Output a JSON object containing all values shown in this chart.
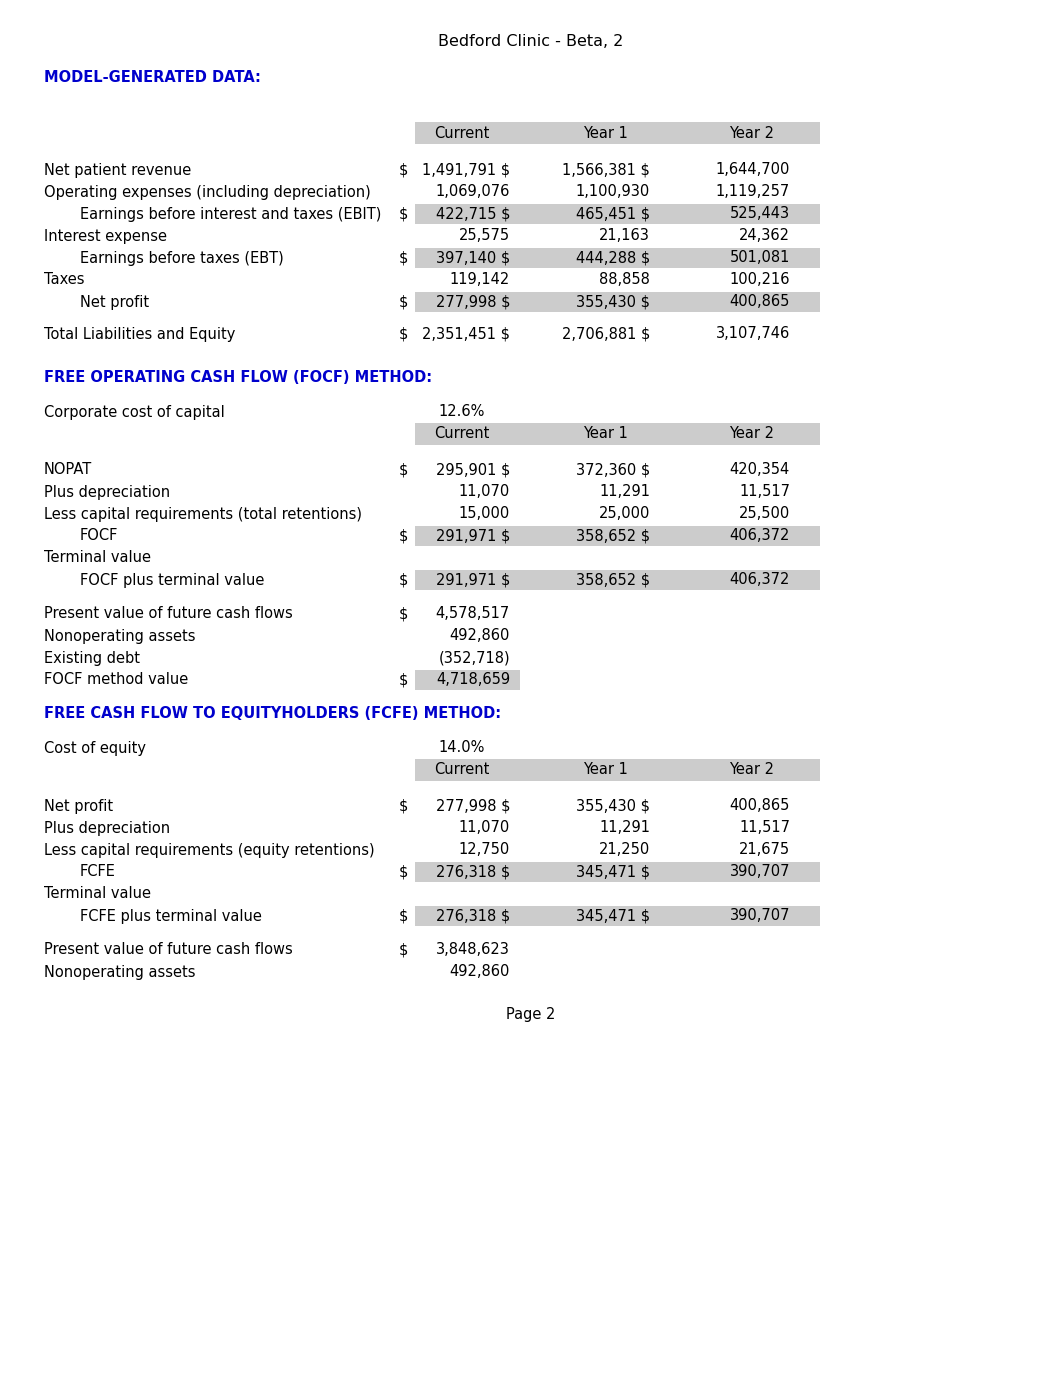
{
  "title": "Bedford Clinic - Beta, 2",
  "page_label": "Page 2",
  "bg_color": "#ffffff",
  "blue_color": "#0000cc",
  "black_color": "#000000",
  "gray_bg": "#CCCCCC",
  "font_size": 10.5,
  "title_font_size": 11,
  "section1_header": "MODEL-GENERATED DATA:",
  "section1_col_headers": [
    "Current",
    "Year 1",
    "Year 2"
  ],
  "section1_rows": [
    {
      "label": "Net patient revenue",
      "indent": false,
      "dollar": true,
      "shaded": false,
      "values": [
        "1,491,791 $",
        "1,566,381 $",
        "1,644,700"
      ]
    },
    {
      "label": "Operating expenses (including depreciation)",
      "indent": false,
      "dollar": false,
      "shaded": false,
      "values": [
        "1,069,076",
        "1,100,930",
        "1,119,257"
      ]
    },
    {
      "label": "Earnings before interest and taxes (EBIT)",
      "indent": true,
      "dollar": true,
      "shaded": true,
      "values": [
        "422,715 $",
        "465,451 $",
        "525,443"
      ]
    },
    {
      "label": "Interest expense",
      "indent": false,
      "dollar": false,
      "shaded": false,
      "values": [
        "25,575",
        "21,163",
        "24,362"
      ]
    },
    {
      "label": "Earnings before taxes (EBT)",
      "indent": true,
      "dollar": true,
      "shaded": true,
      "values": [
        "397,140 $",
        "444,288 $",
        "501,081"
      ]
    },
    {
      "label": "Taxes",
      "indent": false,
      "dollar": false,
      "shaded": false,
      "values": [
        "119,142",
        "88,858",
        "100,216"
      ]
    },
    {
      "label": "Net profit",
      "indent": true,
      "dollar": true,
      "shaded": true,
      "values": [
        "277,998 $",
        "355,430 $",
        "400,865"
      ]
    }
  ],
  "section1_total_row": {
    "label": "Total Liabilities and Equity",
    "dollar": true,
    "values": [
      "2,351,451 $",
      "2,706,881 $",
      "3,107,746"
    ]
  },
  "section2_header": "FREE OPERATING CASH FLOW (FOCF) METHOD:",
  "section2_cost_label": "Corporate cost of capital",
  "section2_cost_value": "12.6%",
  "section2_col_headers": [
    "Current",
    "Year 1",
    "Year 2"
  ],
  "section2_rows": [
    {
      "label": "NOPAT",
      "indent": false,
      "dollar": true,
      "shaded": false,
      "values": [
        "295,901 $",
        "372,360 $",
        "420,354"
      ]
    },
    {
      "label": "Plus depreciation",
      "indent": false,
      "dollar": false,
      "shaded": false,
      "values": [
        "11,070",
        "11,291",
        "11,517"
      ]
    },
    {
      "label": "Less capital requirements (total retentions)",
      "indent": false,
      "dollar": false,
      "shaded": false,
      "values": [
        "15,000",
        "25,000",
        "25,500"
      ]
    },
    {
      "label": "FOCF",
      "indent": true,
      "dollar": true,
      "shaded": true,
      "values": [
        "291,971 $",
        "358,652 $",
        "406,372"
      ]
    },
    {
      "label": "Terminal value",
      "indent": false,
      "dollar": false,
      "shaded": false,
      "values": [
        "",
        "",
        ""
      ]
    },
    {
      "label": "FOCF plus terminal value",
      "indent": true,
      "dollar": true,
      "shaded": true,
      "values": [
        "291,971 $",
        "358,652 $",
        "406,372"
      ]
    }
  ],
  "section2_summary_rows": [
    {
      "label": "Present value of future cash flows",
      "dollar": true,
      "value": "4,578,517",
      "shaded": false
    },
    {
      "label": "Nonoperating assets",
      "dollar": false,
      "value": "492,860",
      "shaded": false
    },
    {
      "label": "Existing debt",
      "dollar": false,
      "value": "(352,718)",
      "shaded": false
    },
    {
      "label": "FOCF method value",
      "dollar": true,
      "value": "4,718,659",
      "shaded": true
    }
  ],
  "section3_header": "FREE CASH FLOW TO EQUITYHOLDERS (FCFE) METHOD:",
  "section3_cost_label": "Cost of equity",
  "section3_cost_value": "14.0%",
  "section3_col_headers": [
    "Current",
    "Year 1",
    "Year 2"
  ],
  "section3_rows": [
    {
      "label": "Net profit",
      "indent": false,
      "dollar": true,
      "shaded": false,
      "values": [
        "277,998 $",
        "355,430 $",
        "400,865"
      ]
    },
    {
      "label": "Plus depreciation",
      "indent": false,
      "dollar": false,
      "shaded": false,
      "values": [
        "11,070",
        "11,291",
        "11,517"
      ]
    },
    {
      "label": "Less capital requirements (equity retentions)",
      "indent": false,
      "dollar": false,
      "shaded": false,
      "values": [
        "12,750",
        "21,250",
        "21,675"
      ]
    },
    {
      "label": "FCFE",
      "indent": true,
      "dollar": true,
      "shaded": true,
      "values": [
        "276,318 $",
        "345,471 $",
        "390,707"
      ]
    },
    {
      "label": "Terminal value",
      "indent": false,
      "dollar": false,
      "shaded": false,
      "values": [
        "",
        "",
        ""
      ]
    },
    {
      "label": "FCFE plus terminal value",
      "indent": true,
      "dollar": true,
      "shaded": true,
      "values": [
        "276,318 $",
        "345,471 $",
        "390,707"
      ]
    }
  ],
  "section3_summary_rows": [
    {
      "label": "Present value of future cash flows",
      "dollar": true,
      "value": "3,848,623",
      "shaded": false
    },
    {
      "label": "Nonoperating assets",
      "dollar": false,
      "value": "492,860",
      "shaded": false
    }
  ]
}
